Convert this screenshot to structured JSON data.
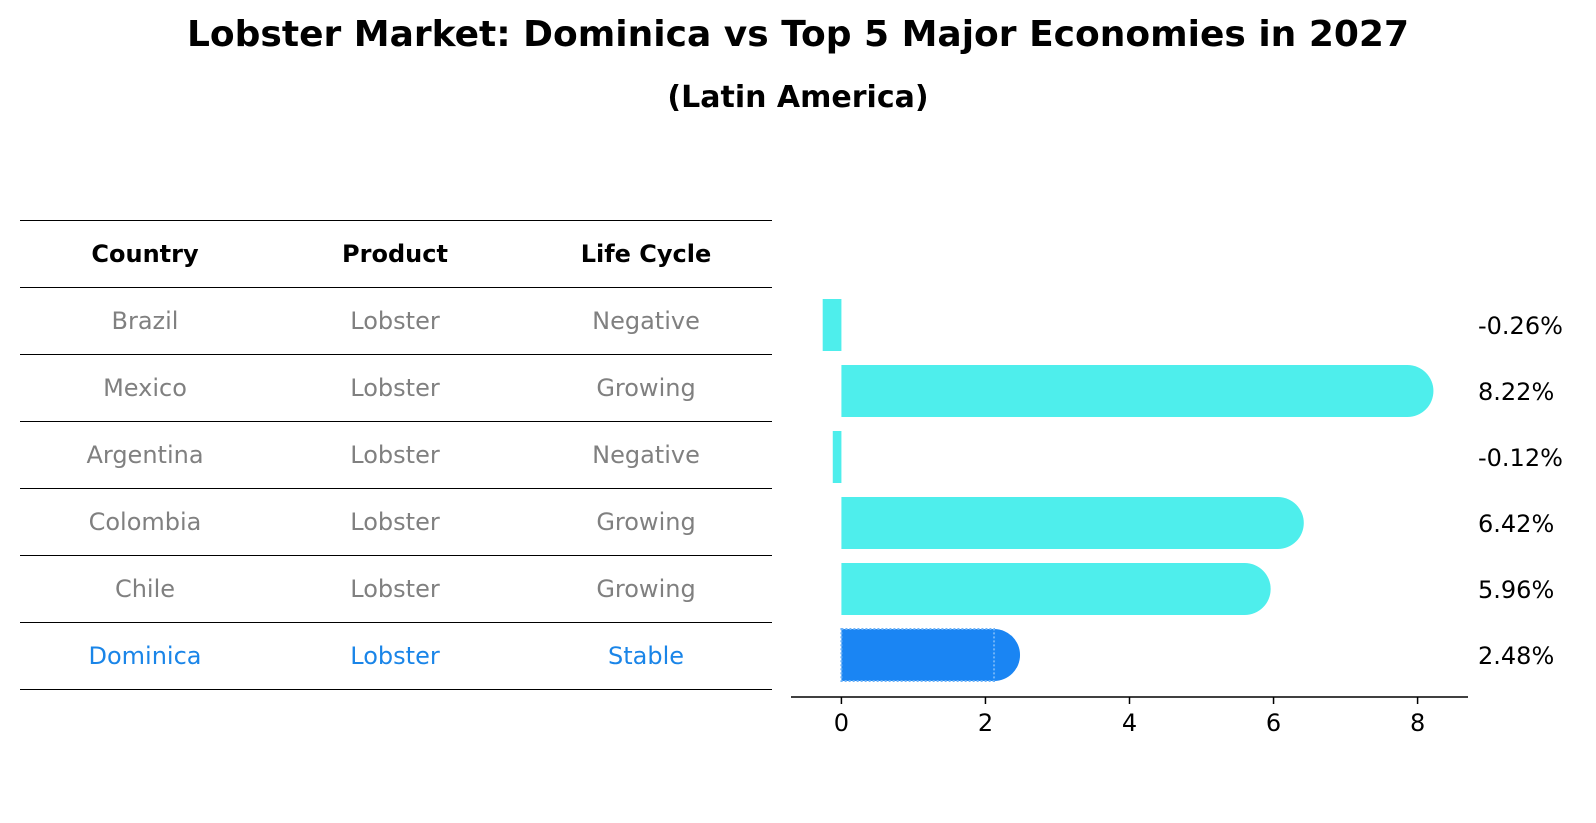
{
  "title": "Lobster Market: Dominica vs Top 5 Major Economies in 2027",
  "subtitle": "(Latin America)",
  "table": {
    "headers": [
      "Country",
      "Product",
      "Life Cycle"
    ],
    "rows": [
      [
        "Brazil",
        "Lobster",
        "Negative"
      ],
      [
        "Mexico",
        "Lobster",
        "Growing"
      ],
      [
        "Argentina",
        "Lobster",
        "Negative"
      ],
      [
        "Colombia",
        "Lobster",
        "Growing"
      ],
      [
        "Chile",
        "Lobster",
        "Growing"
      ],
      [
        "Dominica",
        "Lobster",
        "Stable"
      ]
    ]
  },
  "colors": {
    "bar": "#4eeeec",
    "highlight_bar": "#1a85f3",
    "muted_text": "#808080",
    "highlight_text": "#1a85e8"
  },
  "chart_data": {
    "type": "bar",
    "orientation": "horizontal",
    "categories": [
      "Brazil",
      "Mexico",
      "Argentina",
      "Colombia",
      "Chile",
      "Dominica"
    ],
    "values": [
      -0.26,
      8.22,
      -0.12,
      6.42,
      5.96,
      2.48
    ],
    "data_labels": [
      "-0.26%",
      "8.22%",
      "-0.12%",
      "6.42%",
      "5.96%",
      "2.48%"
    ],
    "highlight": "Dominica",
    "xlim": [
      -0.7,
      8.7
    ],
    "xticks": [
      0,
      2,
      4,
      6,
      8
    ],
    "grid": false
  }
}
